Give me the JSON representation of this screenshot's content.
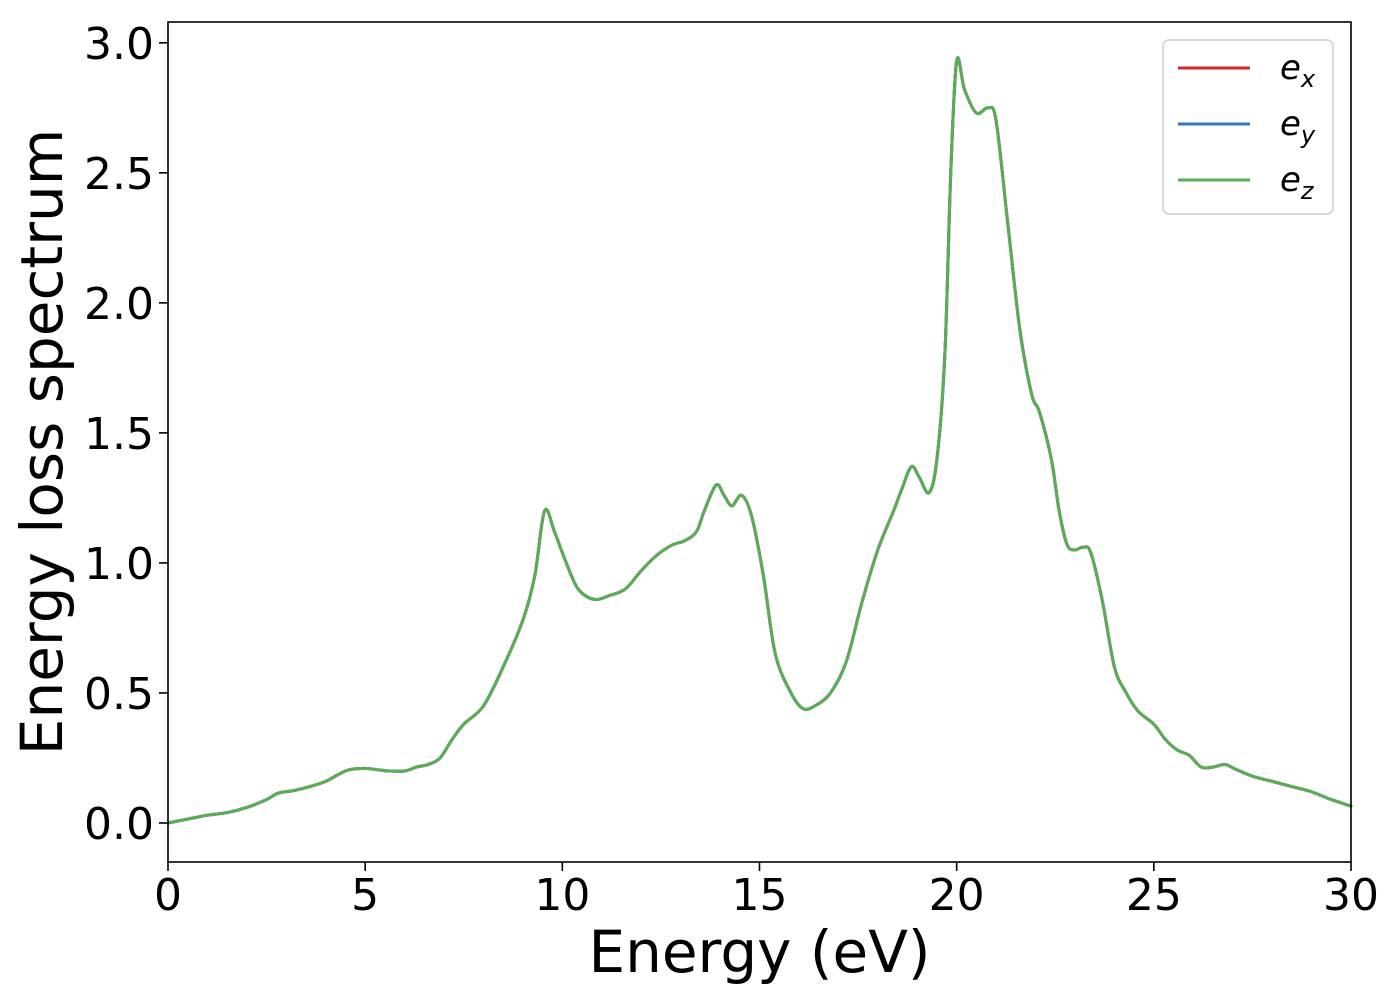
{
  "chart_data": {
    "type": "line",
    "xlabel": "Energy (eV)",
    "ylabel": "Energy loss spectrum",
    "xlim": [
      0,
      30
    ],
    "ylim": [
      -0.15,
      3.08
    ],
    "xticks": [
      0,
      5,
      10,
      15,
      20,
      25,
      30
    ],
    "xtick_labels": [
      "0",
      "5",
      "10",
      "15",
      "20",
      "25",
      "30"
    ],
    "yticks": [
      0.0,
      0.5,
      1.0,
      1.5,
      2.0,
      2.5,
      3.0
    ],
    "ytick_labels": [
      "0.0",
      "0.5",
      "1.0",
      "1.5",
      "2.0",
      "2.5",
      "3.0"
    ],
    "grid": false,
    "legend_position": "top-right",
    "series": [
      {
        "name": "e",
        "subscript": "x",
        "color": "#d62728",
        "x": [
          0,
          0.5,
          1,
          1.5,
          2,
          2.5,
          2.8,
          3.2,
          3.6,
          4,
          4.3,
          4.6,
          5,
          5.3,
          5.6,
          6,
          6.3,
          6.6,
          6.9,
          7.2,
          7.5,
          8,
          8.5,
          9,
          9.3,
          9.55,
          9.8,
          10.1,
          10.4,
          10.8,
          11.2,
          11.6,
          12,
          12.4,
          12.8,
          13.1,
          13.4,
          13.6,
          13.9,
          14.1,
          14.3,
          14.55,
          14.8,
          15.1,
          15.4,
          15.8,
          16.1,
          16.4,
          16.8,
          17.2,
          17.6,
          18,
          18.4,
          18.6,
          18.85,
          19.05,
          19.3,
          19.5,
          19.7,
          19.85,
          20,
          20.2,
          20.5,
          20.8,
          21,
          21.3,
          21.6,
          21.9,
          22.1,
          22.4,
          22.6,
          22.8,
          23,
          23.2,
          23.4,
          23.7,
          24,
          24.3,
          24.6,
          25,
          25.3,
          25.6,
          25.9,
          26.2,
          26.5,
          26.8,
          27.1,
          27.5,
          28,
          28.5,
          29,
          29.5,
          30
        ],
        "y": [
          0.0,
          0.015,
          0.03,
          0.04,
          0.06,
          0.09,
          0.115,
          0.125,
          0.14,
          0.16,
          0.185,
          0.205,
          0.21,
          0.205,
          0.2,
          0.2,
          0.215,
          0.225,
          0.25,
          0.32,
          0.38,
          0.45,
          0.6,
          0.78,
          0.95,
          1.2,
          1.12,
          1.0,
          0.9,
          0.86,
          0.875,
          0.9,
          0.97,
          1.03,
          1.07,
          1.085,
          1.12,
          1.2,
          1.3,
          1.26,
          1.22,
          1.26,
          1.18,
          0.95,
          0.65,
          0.5,
          0.44,
          0.45,
          0.5,
          0.62,
          0.85,
          1.05,
          1.2,
          1.28,
          1.37,
          1.33,
          1.27,
          1.4,
          1.8,
          2.5,
          2.93,
          2.82,
          2.73,
          2.75,
          2.7,
          2.3,
          1.9,
          1.65,
          1.58,
          1.4,
          1.2,
          1.07,
          1.05,
          1.06,
          1.04,
          0.85,
          0.6,
          0.5,
          0.43,
          0.38,
          0.32,
          0.28,
          0.26,
          0.215,
          0.215,
          0.225,
          0.205,
          0.18,
          0.16,
          0.14,
          0.12,
          0.09,
          0.065
        ]
      },
      {
        "name": "e",
        "subscript": "y",
        "color": "#3a77b0",
        "x": [
          0,
          0.5,
          1,
          1.5,
          2,
          2.5,
          2.8,
          3.2,
          3.6,
          4,
          4.3,
          4.6,
          5,
          5.3,
          5.6,
          6,
          6.3,
          6.6,
          6.9,
          7.2,
          7.5,
          8,
          8.5,
          9,
          9.3,
          9.55,
          9.8,
          10.1,
          10.4,
          10.8,
          11.2,
          11.6,
          12,
          12.4,
          12.8,
          13.1,
          13.4,
          13.6,
          13.9,
          14.1,
          14.3,
          14.55,
          14.8,
          15.1,
          15.4,
          15.8,
          16.1,
          16.4,
          16.8,
          17.2,
          17.6,
          18,
          18.4,
          18.6,
          18.85,
          19.05,
          19.3,
          19.5,
          19.7,
          19.85,
          20,
          20.2,
          20.5,
          20.8,
          21,
          21.3,
          21.6,
          21.9,
          22.1,
          22.4,
          22.6,
          22.8,
          23,
          23.2,
          23.4,
          23.7,
          24,
          24.3,
          24.6,
          25,
          25.3,
          25.6,
          25.9,
          26.2,
          26.5,
          26.8,
          27.1,
          27.5,
          28,
          28.5,
          29,
          29.5,
          30
        ],
        "y": [
          0.0,
          0.015,
          0.03,
          0.04,
          0.06,
          0.09,
          0.115,
          0.125,
          0.14,
          0.16,
          0.185,
          0.205,
          0.21,
          0.205,
          0.2,
          0.2,
          0.215,
          0.225,
          0.25,
          0.32,
          0.38,
          0.45,
          0.6,
          0.78,
          0.95,
          1.2,
          1.12,
          1.0,
          0.9,
          0.86,
          0.875,
          0.9,
          0.97,
          1.03,
          1.07,
          1.085,
          1.12,
          1.2,
          1.3,
          1.26,
          1.22,
          1.26,
          1.18,
          0.95,
          0.65,
          0.5,
          0.44,
          0.45,
          0.5,
          0.62,
          0.85,
          1.05,
          1.2,
          1.28,
          1.37,
          1.33,
          1.27,
          1.4,
          1.8,
          2.5,
          2.93,
          2.82,
          2.73,
          2.75,
          2.7,
          2.3,
          1.9,
          1.65,
          1.58,
          1.4,
          1.2,
          1.07,
          1.05,
          1.06,
          1.04,
          0.85,
          0.6,
          0.5,
          0.43,
          0.38,
          0.32,
          0.28,
          0.26,
          0.215,
          0.215,
          0.225,
          0.205,
          0.18,
          0.16,
          0.14,
          0.12,
          0.09,
          0.065
        ]
      },
      {
        "name": "e",
        "subscript": "z",
        "color": "#5aac55",
        "x": [
          0,
          0.5,
          1,
          1.5,
          2,
          2.5,
          2.8,
          3.2,
          3.6,
          4,
          4.3,
          4.6,
          5,
          5.3,
          5.6,
          6,
          6.3,
          6.6,
          6.9,
          7.2,
          7.5,
          8,
          8.5,
          9,
          9.3,
          9.55,
          9.8,
          10.1,
          10.4,
          10.8,
          11.2,
          11.6,
          12,
          12.4,
          12.8,
          13.1,
          13.4,
          13.6,
          13.9,
          14.1,
          14.3,
          14.55,
          14.8,
          15.1,
          15.4,
          15.8,
          16.1,
          16.4,
          16.8,
          17.2,
          17.6,
          18,
          18.4,
          18.6,
          18.85,
          19.05,
          19.3,
          19.5,
          19.7,
          19.85,
          20,
          20.2,
          20.5,
          20.8,
          21,
          21.3,
          21.6,
          21.9,
          22.1,
          22.4,
          22.6,
          22.8,
          23,
          23.2,
          23.4,
          23.7,
          24,
          24.3,
          24.6,
          25,
          25.3,
          25.6,
          25.9,
          26.2,
          26.5,
          26.8,
          27.1,
          27.5,
          28,
          28.5,
          29,
          29.5,
          30
        ],
        "y": [
          0.0,
          0.015,
          0.03,
          0.04,
          0.06,
          0.09,
          0.115,
          0.125,
          0.14,
          0.16,
          0.185,
          0.205,
          0.21,
          0.205,
          0.2,
          0.2,
          0.215,
          0.225,
          0.25,
          0.32,
          0.38,
          0.45,
          0.6,
          0.78,
          0.95,
          1.2,
          1.12,
          1.0,
          0.9,
          0.86,
          0.875,
          0.9,
          0.97,
          1.03,
          1.07,
          1.085,
          1.12,
          1.2,
          1.3,
          1.26,
          1.22,
          1.26,
          1.18,
          0.95,
          0.65,
          0.5,
          0.44,
          0.45,
          0.5,
          0.62,
          0.85,
          1.05,
          1.2,
          1.28,
          1.37,
          1.33,
          1.27,
          1.4,
          1.8,
          2.5,
          2.93,
          2.82,
          2.73,
          2.75,
          2.7,
          2.3,
          1.9,
          1.65,
          1.58,
          1.4,
          1.2,
          1.07,
          1.05,
          1.06,
          1.04,
          0.85,
          0.6,
          0.5,
          0.43,
          0.38,
          0.32,
          0.28,
          0.26,
          0.215,
          0.215,
          0.225,
          0.205,
          0.18,
          0.16,
          0.14,
          0.12,
          0.09,
          0.065
        ]
      }
    ]
  }
}
